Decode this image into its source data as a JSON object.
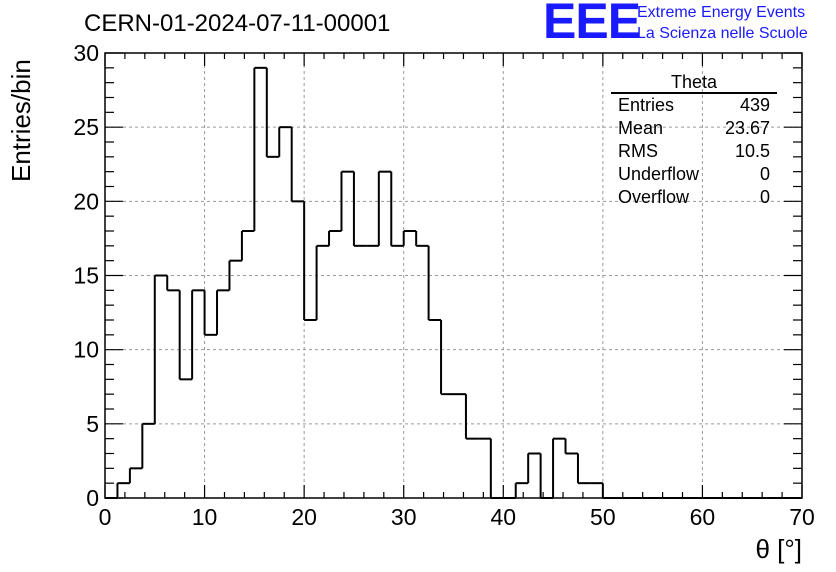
{
  "header": {
    "run_id": "CERN-01-2024-07-11-00001",
    "logo_mark": "EEE",
    "logo_line1": "Extreme Energy Events",
    "logo_line2": "La Scienza nelle Scuole",
    "logo_color": "#1a1aff"
  },
  "stats_box": {
    "title": "Theta",
    "rows": [
      {
        "label": "Entries",
        "value": "439"
      },
      {
        "label": "Mean",
        "value": "23.67"
      },
      {
        "label": "RMS",
        "value": "10.5"
      },
      {
        "label": "Underflow",
        "value": "0"
      },
      {
        "label": "Overflow",
        "value": "0"
      }
    ]
  },
  "chart_data": {
    "type": "bar",
    "histogram": true,
    "xlabel": "θ [°]",
    "ylabel": "Entries/bin",
    "xlim": [
      0,
      70
    ],
    "ylim": [
      0,
      30
    ],
    "x_ticks": [
      "0",
      "10",
      "20",
      "30",
      "40",
      "50",
      "60",
      "70"
    ],
    "y_ticks": [
      "0",
      "5",
      "10",
      "15",
      "20",
      "25",
      "30"
    ],
    "grid": true,
    "bin_edges": [
      0,
      1.25,
      2.5,
      3.75,
      5,
      6.25,
      7.5,
      8.75,
      10,
      11.25,
      12.5,
      13.75,
      15,
      16.25,
      17.5,
      18.75,
      20,
      21.25,
      22.5,
      23.75,
      25,
      26.25,
      27.5,
      28.75,
      30,
      31.25,
      32.5,
      33.75,
      35,
      36.25,
      37.5,
      38.75,
      40,
      41.25,
      42.5,
      43.75,
      45,
      46.25,
      47.5,
      48.75,
      50,
      51.25,
      52.5,
      53.75,
      55,
      56.25,
      57.5,
      58.75,
      60,
      61.25,
      62.5,
      63.75,
      65,
      66.25,
      67.5,
      68.75,
      70
    ],
    "values": [
      0,
      1,
      2,
      5,
      15,
      14,
      8,
      14,
      11,
      14,
      16,
      18,
      29,
      23,
      25,
      20,
      12,
      17,
      18,
      22,
      17,
      17,
      22,
      17,
      18,
      17,
      12,
      7,
      7,
      4,
      4,
      0,
      0,
      1,
      3,
      0,
      4,
      3,
      1,
      1,
      0,
      0,
      0,
      0,
      0,
      0,
      0,
      0,
      0,
      0,
      0,
      0,
      0,
      0,
      0,
      0
    ]
  }
}
